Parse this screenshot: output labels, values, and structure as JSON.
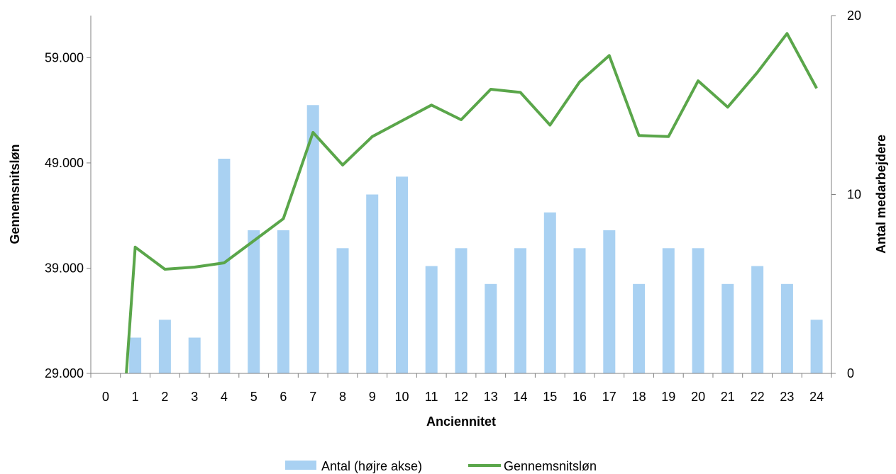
{
  "chart_data": {
    "type": "bar",
    "title": "",
    "xlabel": "Anciennitet",
    "ylabel_left": "Gennemsnitsløn",
    "ylabel_right": "Antal medarbejdere",
    "categories": [
      "0",
      "1",
      "2",
      "3",
      "4",
      "5",
      "6",
      "7",
      "8",
      "9",
      "10",
      "11",
      "12",
      "13",
      "14",
      "15",
      "16",
      "17",
      "18",
      "19",
      "20",
      "21",
      "22",
      "23",
      "24"
    ],
    "left_axis": {
      "ylim": [
        29000,
        63000
      ],
      "ticks": [
        29000,
        39000,
        49000,
        59000
      ],
      "tick_labels": [
        "29.000",
        "39.000",
        "49.000",
        "59.000"
      ]
    },
    "right_axis": {
      "ylim": [
        0,
        20
      ],
      "ticks": [
        0,
        10,
        20
      ],
      "tick_labels": [
        "0",
        "10",
        "20"
      ]
    },
    "grid": false,
    "legend_position": "bottom",
    "series": [
      {
        "name": "Antal (højre akse)",
        "type": "bar",
        "axis": "right",
        "color": "#a9d1f2",
        "values": [
          0,
          2,
          3,
          2,
          12,
          8,
          8,
          15,
          7,
          10,
          11,
          6,
          7,
          5,
          7,
          9,
          7,
          8,
          5,
          7,
          7,
          5,
          6,
          5,
          3
        ]
      },
      {
        "name": "Gennemsnitsløn",
        "type": "line",
        "axis": "left",
        "color": "#5aa64a",
        "x": [
          0.7,
          1,
          2,
          3,
          4,
          5,
          6,
          7,
          8,
          9,
          10,
          11,
          12,
          13,
          14,
          15,
          16,
          17,
          18,
          19,
          20,
          21,
          22,
          23,
          24
        ],
        "values": [
          29000,
          41000,
          38900,
          39100,
          39500,
          41600,
          43700,
          51900,
          48800,
          51500,
          53000,
          54500,
          53100,
          56000,
          55700,
          52600,
          56700,
          59200,
          51600,
          51500,
          56800,
          54300,
          57600,
          61300,
          56100
        ]
      }
    ]
  }
}
